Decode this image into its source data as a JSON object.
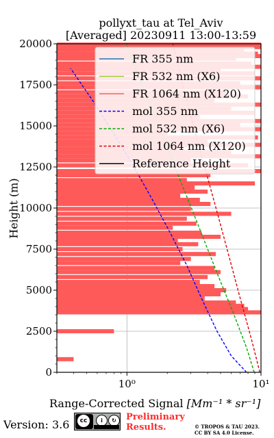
{
  "title": {
    "line1": "pollyxt_tau at Tel_Aviv",
    "line2": "[Averaged] 20230911 13:00-13:59"
  },
  "footer": {
    "version": "Version: 3.6",
    "preliminary_line1": "Preliminary",
    "preliminary_line2": "Results.",
    "copyright_line1": "© TROPOS & TAU 2023.",
    "copyright_line2": "CC BY SA 4.0 License.",
    "license_badge": "cc-by-sa-badge"
  },
  "chart_data": {
    "type": "line",
    "ylabel": "Height (m)",
    "xlabel_text": "Range-Corrected Signal",
    "xlabel_unit": "[Mm⁻¹ * sr⁻¹]",
    "xscale": "log",
    "xlim": [
      0.3,
      10
    ],
    "ylim": [
      0,
      20000
    ],
    "x_ticks": [
      {
        "value": 1,
        "label": "10⁰"
      },
      {
        "value": 10,
        "label": "10¹"
      }
    ],
    "y_ticks": [
      0,
      2500,
      5000,
      7500,
      10000,
      12500,
      15000,
      17500,
      20000
    ],
    "y_tick_labels": [
      "0",
      "2500",
      "5000",
      "7500",
      "10000",
      "12500",
      "15000",
      "17500",
      "20000"
    ],
    "grid": true,
    "legend_position": "top-right",
    "legend": [
      "FR 355 nm",
      "FR 532 nm (X6)",
      "FR 1064 nm (X120)",
      "mol 355 nm",
      "mol 532 nm (X6)",
      "mol 1064 nm (X120)",
      "Reference Height"
    ],
    "colors": {
      "fr355": "#1f77b4",
      "fr532": "#9acd32",
      "fr1064": "#ff5a5a",
      "mol355": "#0000ff",
      "mol532": "#00aa00",
      "mol1064": "#dd0000",
      "ref": "#000000"
    },
    "series": [
      {
        "name": "mol 355 nm",
        "style": "dashed",
        "points": [
          [
            7.8,
            0
          ],
          [
            6.0,
            1000
          ],
          [
            4.7,
            2500
          ],
          [
            3.6,
            4500
          ],
          [
            2.8,
            6500
          ],
          [
            2.1,
            8500
          ],
          [
            1.55,
            10500
          ],
          [
            1.13,
            12500
          ],
          [
            0.8,
            14500
          ],
          [
            0.56,
            16500
          ],
          [
            0.38,
            18500
          ]
        ]
      },
      {
        "name": "mol 532 nm (X6)",
        "style": "dashed",
        "points": [
          [
            8.9,
            0
          ],
          [
            7.8,
            1500
          ],
          [
            6.3,
            3500
          ],
          [
            5.0,
            5500
          ],
          [
            4.0,
            7500
          ],
          [
            3.2,
            9500
          ],
          [
            2.55,
            11500
          ],
          [
            2.05,
            13500
          ],
          [
            1.63,
            15500
          ],
          [
            1.3,
            17500
          ],
          [
            1.04,
            19500
          ],
          [
            0.99,
            20000
          ]
        ]
      },
      {
        "name": "mol 1064 nm (X120)",
        "style": "dashed",
        "points": [
          [
            9.8,
            0
          ],
          [
            8.5,
            2000
          ],
          [
            7.0,
            4500
          ],
          [
            5.8,
            7000
          ],
          [
            4.8,
            9500
          ],
          [
            3.95,
            12000
          ],
          [
            3.25,
            14500
          ],
          [
            2.7,
            17000
          ],
          [
            2.2,
            20000
          ]
        ]
      },
      {
        "name": "FR 1064 nm (X120)",
        "style": "bars",
        "left_edge": 0.3,
        "points": [
          [
            10,
            19950
          ],
          [
            10,
            19800
          ],
          [
            7.5,
            19650
          ],
          [
            9.5,
            19400
          ],
          [
            10,
            19250
          ],
          [
            6.5,
            19100
          ],
          [
            8.5,
            18800
          ],
          [
            10,
            18600
          ],
          [
            5.0,
            18450
          ],
          [
            9,
            18200
          ],
          [
            10,
            17900
          ],
          [
            7.0,
            17600
          ],
          [
            10,
            17350
          ],
          [
            5.5,
            17050
          ],
          [
            8,
            16800
          ],
          [
            4.5,
            16550
          ],
          [
            10,
            16300
          ],
          [
            6.0,
            16050
          ],
          [
            9,
            15800
          ],
          [
            3.5,
            15550
          ],
          [
            10,
            15300
          ],
          [
            7.0,
            15050
          ],
          [
            10,
            14800
          ],
          [
            2.0,
            14550
          ],
          [
            9.5,
            14300
          ],
          [
            4.0,
            14050
          ],
          [
            10,
            13850
          ],
          [
            2.5,
            13600
          ],
          [
            6.0,
            13400
          ],
          [
            10,
            13150
          ],
          [
            3.0,
            12900
          ],
          [
            8.0,
            12600
          ],
          [
            10,
            12250
          ],
          [
            4.2,
            12000
          ],
          [
            2.8,
            11700
          ],
          [
            9.0,
            11500
          ],
          [
            3.2,
            11250
          ],
          [
            4.0,
            11000
          ],
          [
            2.5,
            10750
          ],
          [
            3.5,
            10500
          ],
          [
            4.2,
            10250
          ],
          [
            3.0,
            9950
          ],
          [
            6.0,
            9650
          ],
          [
            2.8,
            9350
          ],
          [
            3.3,
            9050
          ],
          [
            2.2,
            8800
          ],
          [
            3.6,
            8500
          ],
          [
            5.0,
            8250
          ],
          [
            2.4,
            8000
          ],
          [
            3.4,
            7800
          ],
          [
            2.6,
            7500
          ],
          [
            4.6,
            7200
          ],
          [
            3.0,
            6900
          ],
          [
            2.5,
            6650
          ],
          [
            4.5,
            6350
          ],
          [
            5.0,
            6100
          ],
          [
            4.0,
            5800
          ],
          [
            3.5,
            5500
          ],
          [
            4.5,
            5250
          ],
          [
            5.5,
            5000
          ],
          [
            5.0,
            4750
          ],
          [
            3.8,
            4500
          ],
          [
            6.5,
            4250
          ],
          [
            7.5,
            4050
          ],
          [
            8.0,
            3850
          ],
          [
            10,
            3650
          ],
          [
            0.8,
            2500
          ],
          [
            0.4,
            800
          ]
        ]
      },
      {
        "name": "FR 355 nm",
        "style": "solid",
        "points": []
      },
      {
        "name": "FR 532 nm (X6)",
        "style": "solid",
        "points": []
      },
      {
        "name": "Reference Height",
        "style": "solid",
        "points": []
      }
    ]
  }
}
